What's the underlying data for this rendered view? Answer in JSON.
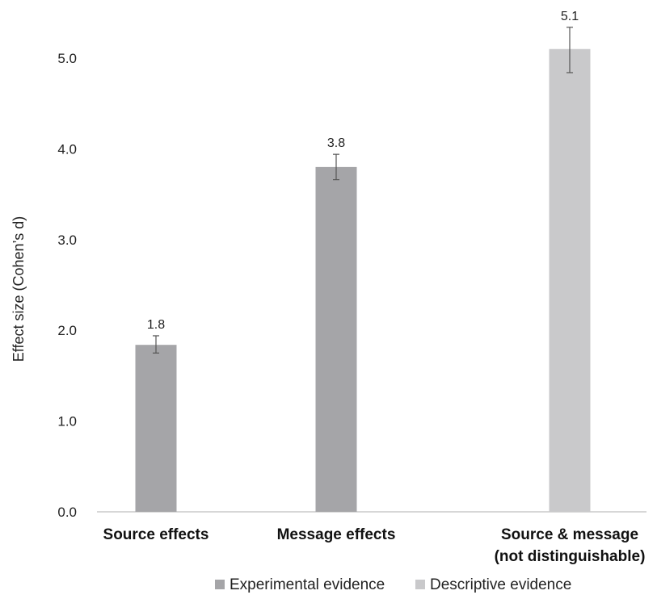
{
  "chart_data": {
    "type": "bar",
    "ylabel": "Effect size (Cohen’s d)",
    "ylim": [
      0,
      5.0
    ],
    "yticks": [
      "0.0",
      "1.0",
      "2.0",
      "3.0",
      "4.0",
      "5.0"
    ],
    "grid": false,
    "legend_position": "bottom",
    "categories": [
      {
        "lines": [
          "Source effects"
        ]
      },
      {
        "lines": [
          "Message effects"
        ]
      },
      {
        "lines": [
          "Source & message",
          "(not distinguishable)"
        ]
      }
    ],
    "series": [
      {
        "name": "Experimental evidence",
        "color": "#a5a5a8"
      },
      {
        "name": "Descriptive evidence",
        "color": "#c9c9cb"
      }
    ],
    "bars": [
      {
        "category_index": 0,
        "series_index": 0,
        "value": 1.84,
        "error_low": 1.75,
        "error_high": 1.94,
        "label": "1.8"
      },
      {
        "category_index": 1,
        "series_index": 0,
        "value": 3.8,
        "error_low": 3.66,
        "error_high": 3.94,
        "label": "3.8"
      },
      {
        "category_index": 2,
        "series_index": 1,
        "value": 5.1,
        "error_low": 4.84,
        "error_high": 5.34,
        "label": "5.1"
      }
    ]
  }
}
